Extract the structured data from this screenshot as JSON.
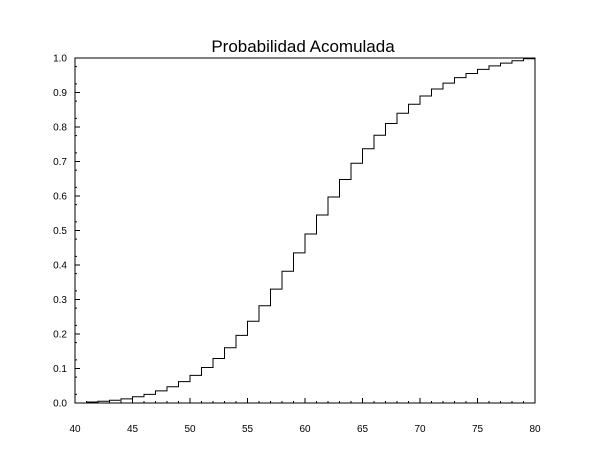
{
  "chart_data": {
    "type": "line",
    "step": true,
    "title": "Probabilidad Acomulada",
    "xlabel": "",
    "ylabel": "",
    "xlim": [
      40,
      80
    ],
    "ylim": [
      0,
      1.0
    ],
    "x_ticks": [
      40,
      45,
      50,
      55,
      60,
      65,
      70,
      75,
      80
    ],
    "y_ticks": [
      "0.0",
      "0.1",
      "0.2",
      "0.3",
      "0.4",
      "0.5",
      "0.6",
      "0.7",
      "0.8",
      "0.9",
      "1.0"
    ],
    "grid": false,
    "legend": "none",
    "x": [
      40,
      41,
      42,
      43,
      44,
      45,
      46,
      47,
      48,
      49,
      50,
      51,
      52,
      53,
      54,
      55,
      56,
      57,
      58,
      59,
      60,
      61,
      62,
      63,
      64,
      65,
      66,
      67,
      68,
      69,
      70,
      71,
      72,
      73,
      74,
      75,
      76,
      77,
      78,
      79
    ],
    "y": [
      0.0,
      0.003,
      0.005,
      0.008,
      0.012,
      0.018,
      0.025,
      0.035,
      0.047,
      0.062,
      0.08,
      0.103,
      0.129,
      0.16,
      0.196,
      0.237,
      0.282,
      0.33,
      0.382,
      0.435,
      0.49,
      0.545,
      0.597,
      0.648,
      0.695,
      0.737,
      0.776,
      0.81,
      0.84,
      0.866,
      0.89,
      0.91,
      0.927,
      0.943,
      0.955,
      0.967,
      0.977,
      0.985,
      0.992,
      0.998
    ],
    "line_color": "#000000"
  }
}
